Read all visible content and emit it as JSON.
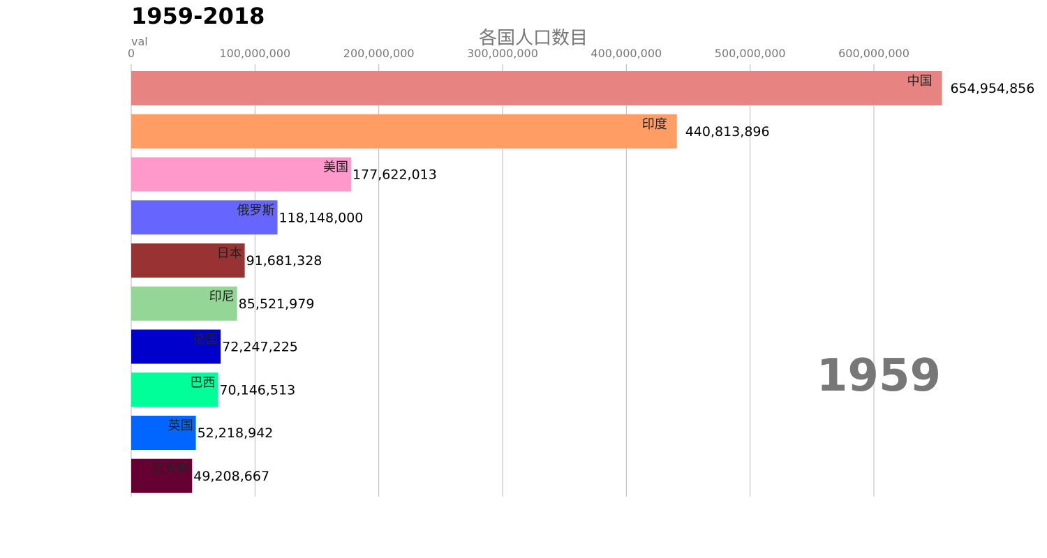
{
  "chart_data": {
    "type": "bar",
    "orientation": "horizontal",
    "title": "1959-2018",
    "subtitle": "各国人口数目",
    "xlabel": "val",
    "ylabel": "",
    "xlim": [
      0,
      660000000
    ],
    "ticks": [
      0,
      100000000,
      200000000,
      300000000,
      400000000,
      500000000,
      600000000
    ],
    "tick_labels": [
      "0",
      "100,000,000",
      "200,000,000",
      "300,000,000",
      "400,000,000",
      "500,000,000",
      "600,000,000"
    ],
    "grid": "vertical",
    "year": "1959",
    "categories": [
      "中国",
      "印度",
      "美国",
      "俄罗斯",
      "日本",
      "印尼",
      "德国",
      "巴西",
      "英国",
      "意大利"
    ],
    "values": [
      654954856,
      440813896,
      177622013,
      118148000,
      91681328,
      85521979,
      72247225,
      70146513,
      52218942,
      49208667
    ],
    "value_labels": [
      "654,954,856",
      "440,813,896",
      "177,622,013",
      "118,148,000",
      "91,681,328",
      "85,521,979",
      "72,247,225",
      "70,146,513",
      "52,218,942",
      "49,208,667"
    ],
    "colors": [
      "#e78482",
      "#ff9d65",
      "#ff99cc",
      "#6666ff",
      "#993333",
      "#93d695",
      "#0000cc",
      "#00ff99",
      "#0066ff",
      "#660033"
    ]
  }
}
